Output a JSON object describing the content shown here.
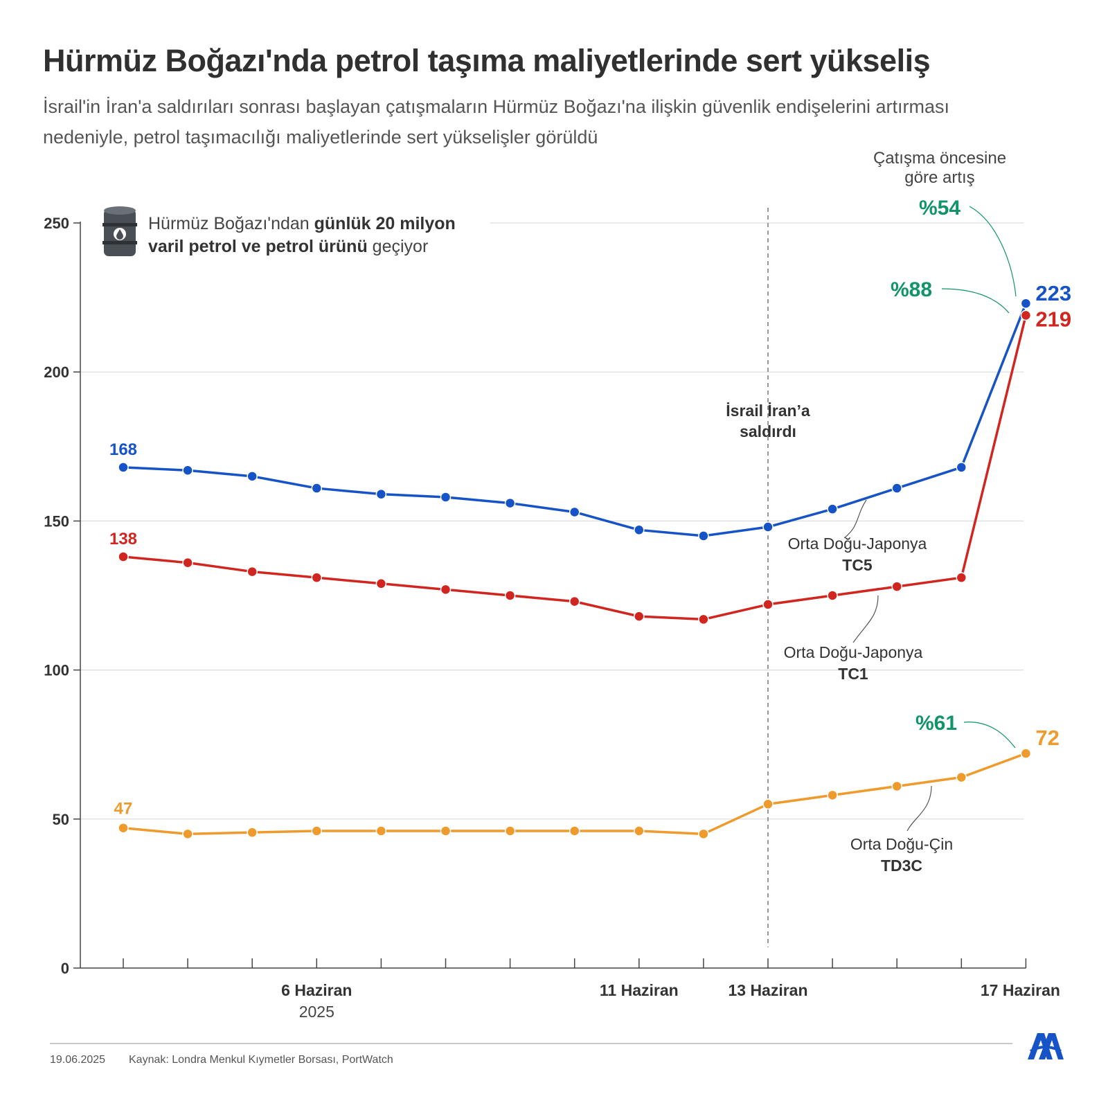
{
  "header": {
    "title": "Hürmüz Boğazı'nda petrol taşıma maliyetlerinde sert yükseliş",
    "subtitle": "İsrail'in İran'a saldırıları sonrası başlayan çatışmaların Hürmüz Boğazı'na ilişkin güvenlik endişelerini artırması nedeniyle, petrol taşımacılığı maliyetlerinde sert yükselişler görüldü"
  },
  "info_box": {
    "icon": "oil-barrel-icon",
    "line1_normal": "Hürmüz Boğazı'ndan ",
    "line1_bold": "günlük 20 milyon",
    "line2_bold": "varil petrol ve petrol ürünü",
    "line2_normal": " geçiyor"
  },
  "chart_data": {
    "type": "line",
    "x": [
      "",
      "",
      "",
      "6 Haziran",
      "",
      "",
      "",
      "",
      "11 Haziran",
      "",
      "13 Haziran",
      "",
      "",
      "",
      "17 Haziran"
    ],
    "x_sublabels": [
      "",
      "",
      "",
      "2025",
      "",
      "",
      "",
      "",
      "",
      "",
      "",
      "",
      "",
      "",
      ""
    ],
    "ylim": [
      0,
      250
    ],
    "yticks": [
      0,
      50,
      100,
      150,
      200,
      250
    ],
    "grid": true,
    "series": [
      {
        "name": "Orta Doğu-Japonya",
        "code": "TC5",
        "color": "#1553c7",
        "values": [
          168,
          167,
          165,
          161,
          159,
          158,
          156,
          153,
          147,
          145,
          148,
          154,
          161,
          168,
          223
        ],
        "start_label": "168",
        "end_label": "223",
        "change_label": "%54"
      },
      {
        "name": "Orta Doğu-Japonya",
        "code": "TC1",
        "color": "#d1261f",
        "values": [
          138,
          136,
          133,
          131,
          129,
          127,
          125,
          123,
          118,
          117,
          122,
          125,
          128,
          131,
          219
        ],
        "start_label": "138",
        "end_label": "219",
        "change_label": "%88"
      },
      {
        "name": "Orta Doğu-Çin",
        "code": "TD3C",
        "color": "#ef9a2c",
        "values": [
          47,
          45,
          45.5,
          46,
          46,
          46,
          46,
          46,
          46,
          45,
          55,
          58,
          61,
          64,
          72
        ],
        "start_label": "47",
        "end_label": "72",
        "change_label": "%61"
      }
    ],
    "event": {
      "x_index": 10,
      "line1": "İsrail İran’a",
      "line2": "saldırdı"
    },
    "change_caption": {
      "line1": "Çatışma öncesine",
      "line2": "göre artış"
    },
    "change_color": "#119467"
  },
  "footer": {
    "date": "19.06.2025",
    "source": "Kaynak: Londra Menkul Kıymetler Borsası, PortWatch",
    "logo": "aa-logo"
  }
}
